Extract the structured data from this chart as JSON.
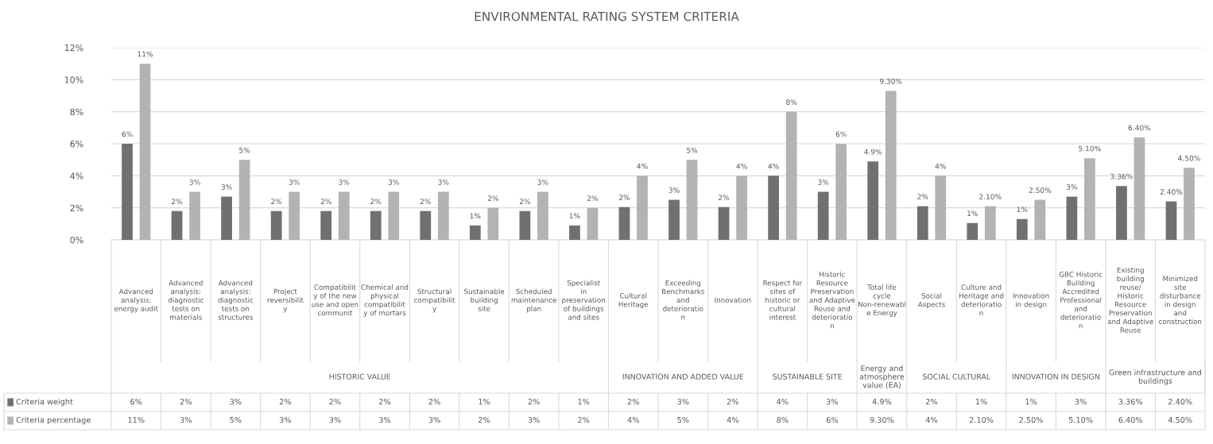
{
  "chart_data": {
    "type": "bar",
    "title": "ENVIRONMENTAL RATING SYSTEM CRITERIA",
    "categories": [
      "Advanced analysis: energy audit",
      "Advanced analysis: diagnostic tests on materials",
      "Advanced analysis: diagnostic tests on structures",
      "Project reversibility",
      "Compatibility of the new use and open communit",
      "Chemical and physical compatibility of mortars",
      "Structural compatibility",
      "Sustainable building site",
      "Scheduled maintenance plan",
      "Specialist in preservation of buildings and sites",
      "Cultural Heritage",
      "Exceeding Benchmarks and deterioration",
      "Innovation",
      "Respect for sites of historic or cultural interest",
      "Historic Resource Preservation and Adaptive Reuse and deterioration",
      "Total life cycle Non-renewable Energy",
      "Social Aspects",
      "Culture and Heritage and deterioration",
      "Innovation in design",
      "GBC Historic Building Accredited Professional and deterioration",
      "Existing building reuse/ Historic Resource Preservation and Adaptive Reuse",
      "Minimized site disturbance in design and construction"
    ],
    "series": [
      {
        "name": "Criteria weight",
        "color": "#707070",
        "values": [
          6,
          1.8,
          2.7,
          1.8,
          1.8,
          1.8,
          1.8,
          0.9,
          1.8,
          0.9,
          2.05,
          2.5,
          2.05,
          4,
          3,
          4.9,
          2.1,
          1.05,
          1.3,
          2.7,
          3.36,
          2.4
        ],
        "value_labels": [
          "6%",
          "2%",
          "3%",
          "2%",
          "2%",
          "2%",
          "2%",
          "1%",
          "2%",
          "1%",
          "2%",
          "3%",
          "2%",
          "4%",
          "3%",
          "4.9%",
          "2%",
          "1%",
          "1%",
          "3%",
          "3.36%",
          "2.40%"
        ]
      },
      {
        "name": "Criteria percentage",
        "color": "#b3b3b3",
        "values": [
          11,
          3,
          5,
          3,
          3,
          3,
          3,
          2,
          3,
          2,
          4,
          5,
          4,
          8,
          6,
          9.3,
          4,
          2.1,
          2.5,
          5.1,
          6.4,
          4.5
        ],
        "value_labels": [
          "11%",
          "3%",
          "5%",
          "3%",
          "3%",
          "3%",
          "3%",
          "2%",
          "3%",
          "2%",
          "4%",
          "5%",
          "4%",
          "8%",
          "6%",
          "9.30%",
          "4%",
          "2.10%",
          "2.50%",
          "5.10%",
          "6.40%",
          "4.50%"
        ]
      }
    ],
    "annotations": [
      "HISTORIC VALUE",
      "INNOVATION AND ADDED VALUE",
      "SUSTAINABLE SITE",
      "Energy and atmosphere value (EA)",
      "SOCIAL CULTURAL",
      "INNOVATION IN DESIGN",
      "Green infrastructure and buildings"
    ],
    "ylim": [
      0,
      12
    ],
    "yticks": [
      {
        "value": 0,
        "label": "0%"
      },
      {
        "value": 2,
        "label": "2%"
      },
      {
        "value": 4,
        "label": "4%"
      },
      {
        "value": 6,
        "label": "6%"
      },
      {
        "value": 8,
        "label": "8%"
      },
      {
        "value": 10,
        "label": "10%"
      },
      {
        "value": 12,
        "label": "12%"
      }
    ],
    "grid": "y",
    "legend": "bottom"
  }
}
